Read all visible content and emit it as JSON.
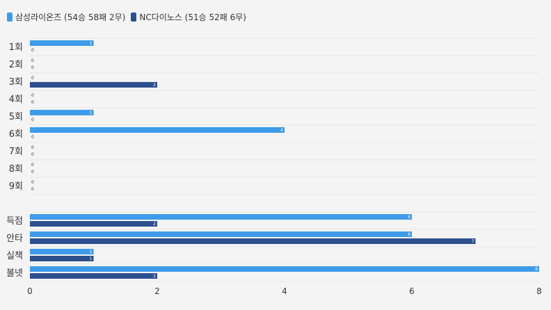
{
  "legend": [
    {
      "label": "삼성라이온즈 (54승 58패 2무)",
      "color": "#3d9be9"
    },
    {
      "label": "NC다이노스 (51승 52패 6무)",
      "color": "#2d4f8e"
    }
  ],
  "chart_data": {
    "type": "bar",
    "orientation": "horizontal",
    "categories": [
      "1회",
      "2회",
      "3회",
      "4회",
      "5회",
      "6회",
      "7회",
      "8회",
      "9회",
      "",
      "득점",
      "안타",
      "실책",
      "볼넷"
    ],
    "series": [
      {
        "name": "삼성라이온즈 (54승 58패 2무)",
        "color": "#3d9be9",
        "values": [
          1,
          0,
          0,
          0,
          1,
          4,
          0,
          0,
          0,
          null,
          6,
          6,
          1,
          8
        ]
      },
      {
        "name": "NC다이노스 (51승 52패 6무)",
        "color": "#2d4f8e",
        "values": [
          0,
          0,
          2,
          0,
          0,
          0,
          0,
          0,
          0,
          null,
          2,
          7,
          1,
          2
        ]
      }
    ],
    "xlim": [
      0,
      8
    ],
    "xticks": [
      "0",
      "2",
      "4",
      "6",
      "8"
    ],
    "grid": true,
    "legend_position": "top-left"
  }
}
